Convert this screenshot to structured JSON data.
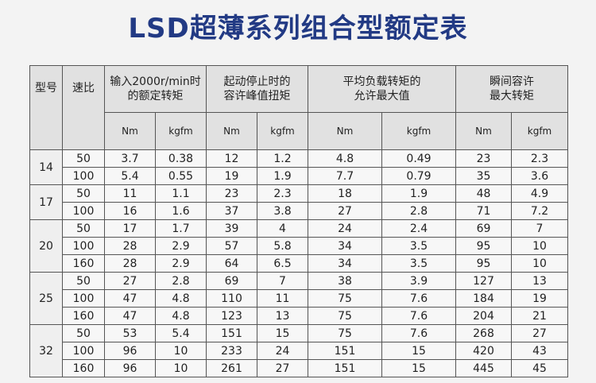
{
  "title": "LSD超薄系列组合型额定表",
  "headers": {
    "model": "型号",
    "ratio": "速比",
    "rated_torque": "输入2000r/min时\n的额定转矩",
    "peak_torque": "起动停止时的\n容许峰值扭矩",
    "avg_torque": "平均负载转矩的\n允许最大值",
    "instant_torque": "瞬间容许\n最大转矩",
    "unit_nm": "Nm",
    "unit_kgfm": "kgfm"
  },
  "groups": [
    {
      "model": "14",
      "rows": [
        [
          "50",
          "3.7",
          "0.38",
          "12",
          "1.2",
          "4.8",
          "0.49",
          "23",
          "2.3"
        ],
        [
          "100",
          "5.4",
          "0.55",
          "19",
          "1.9",
          "7.7",
          "0.79",
          "35",
          "3.6"
        ]
      ]
    },
    {
      "model": "17",
      "rows": [
        [
          "50",
          "11",
          "1.1",
          "23",
          "2.3",
          "18",
          "1.9",
          "48",
          "4.9"
        ],
        [
          "100",
          "16",
          "1.6",
          "37",
          "3.8",
          "27",
          "2.8",
          "71",
          "7.2"
        ]
      ]
    },
    {
      "model": "20",
      "rows": [
        [
          "50",
          "17",
          "1.7",
          "39",
          "4",
          "24",
          "2.4",
          "69",
          "7"
        ],
        [
          "100",
          "28",
          "2.9",
          "57",
          "5.8",
          "34",
          "3.5",
          "95",
          "10"
        ],
        [
          "160",
          "28",
          "2.9",
          "64",
          "6.5",
          "34",
          "3.5",
          "95",
          "10"
        ]
      ]
    },
    {
      "model": "25",
      "rows": [
        [
          "50",
          "27",
          "2.8",
          "69",
          "7",
          "38",
          "3.9",
          "127",
          "13"
        ],
        [
          "100",
          "47",
          "4.8",
          "110",
          "11",
          "75",
          "7.6",
          "184",
          "19"
        ],
        [
          "160",
          "47",
          "4.8",
          "123",
          "13",
          "75",
          "7.6",
          "204",
          "21"
        ]
      ]
    },
    {
      "model": "32",
      "rows": [
        [
          "50",
          "53",
          "5.4",
          "151",
          "15",
          "75",
          "7.6",
          "268",
          "27"
        ],
        [
          "100",
          "96",
          "10",
          "233",
          "24",
          "151",
          "15",
          "420",
          "43"
        ],
        [
          "160",
          "96",
          "10",
          "261",
          "27",
          "151",
          "15",
          "445",
          "45"
        ]
      ]
    }
  ]
}
